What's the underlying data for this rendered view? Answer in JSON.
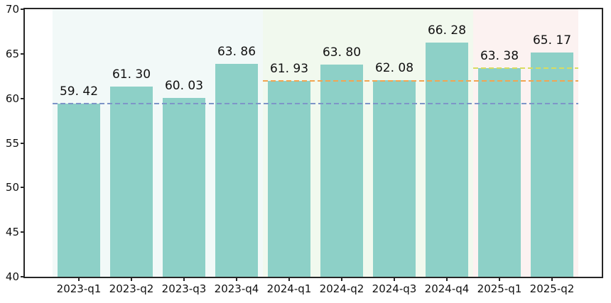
{
  "chart_data": {
    "type": "bar",
    "title": "",
    "xlabel": "",
    "ylabel": "",
    "categories": [
      "2023-q1",
      "2023-q2",
      "2023-q3",
      "2023-q4",
      "2024-q1",
      "2024-q2",
      "2024-q3",
      "2024-q4",
      "2025-q1",
      "2025-q2"
    ],
    "values": [
      59.42,
      61.3,
      60.03,
      63.86,
      61.93,
      63.8,
      62.08,
      66.28,
      63.38,
      65.17
    ],
    "value_labels": [
      "59. 42",
      "61. 30",
      "60. 03",
      "63. 86",
      "61. 93",
      "63. 80",
      "62. 08",
      "66. 28",
      "63. 38",
      "65. 17"
    ],
    "ylim": [
      40,
      70
    ],
    "yticks": [
      40,
      45,
      50,
      55,
      60,
      65,
      70
    ],
    "ytick_labels": [
      "40",
      "45",
      "50",
      "55",
      "60",
      "65",
      "70"
    ],
    "grid": false,
    "legend": null,
    "bar_color": "#8dd0c7",
    "regions": [
      {
        "year": "2023",
        "start_index": 0,
        "end_index": 3,
        "color": "#f2f9f8"
      },
      {
        "year": "2024",
        "start_index": 4,
        "end_index": 7,
        "color": "#f1f9ee"
      },
      {
        "year": "2025",
        "start_index": 8,
        "end_index": 9,
        "color": "#fcf2f1"
      }
    ],
    "reference_lines": [
      {
        "value": 59.42,
        "color": "#7e95c8",
        "style": "dashed",
        "start_index": 0
      },
      {
        "value": 61.93,
        "color": "#f2a552",
        "style": "dashed",
        "start_index": 4
      },
      {
        "value": 63.38,
        "color": "#d8dc60",
        "style": "dashed",
        "start_index": 8
      }
    ],
    "colors": {
      "spine": "#262626",
      "text": "#111111"
    }
  }
}
